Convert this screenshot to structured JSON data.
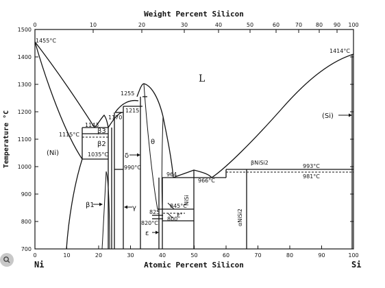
{
  "top_axis": {
    "title": "Weight Percent Silicon",
    "ticks": [
      "0",
      "10",
      "20",
      "30",
      "40",
      "50",
      "60",
      "70",
      "80",
      "90",
      "100"
    ]
  },
  "bottom_axis": {
    "title": "Atomic Percent Silicon",
    "ticks": [
      "0",
      "10",
      "20",
      "30",
      "40",
      "50",
      "60",
      "70",
      "80",
      "90",
      "100"
    ]
  },
  "left_axis": {
    "title": "Temperature °C",
    "ticks": [
      "700",
      "800",
      "900",
      "1000",
      "1100",
      "1200",
      "1300",
      "1400",
      "1500"
    ]
  },
  "corners": {
    "left": "Ni",
    "right": "Si"
  },
  "labels": {
    "t1455": "1455°C",
    "t1414": "1414°C",
    "liquid": "L",
    "si_phase": "(Si)",
    "ni_phase": "(Ni)",
    "t1143": "1143",
    "t1170": "1170",
    "t1255": "1255",
    "t1215": "1215",
    "t1115": "1115°C",
    "t1035": "1035°C",
    "t990": "990°C",
    "t964": "964",
    "t966": "966°C",
    "t993": "993°C",
    "t981": "981°C",
    "t845": "845°C",
    "t825": "825",
    "t820": "820°C",
    "t800": "800",
    "beta3": "β3",
    "beta2": "β2",
    "beta1": "β1",
    "delta": "δ",
    "theta": "θ",
    "gamma": "γ",
    "epsilon": "ε",
    "epsilon_prime": "ε'",
    "nisi": "NiSi",
    "alpha_nisi2": "αNiSi2",
    "beta_nisi2": "βNiSi2"
  },
  "colors": {
    "ink": "#111111",
    "background": "#ffffff",
    "badge": "#c8c8c8"
  },
  "badge_icon": "search-lens-icon"
}
